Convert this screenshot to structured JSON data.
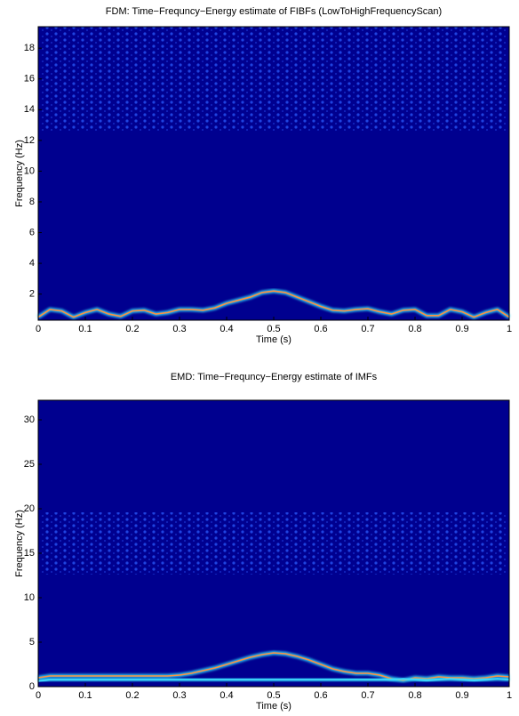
{
  "chart_data": [
    {
      "type": "line",
      "title": "FDM: Time−Frequncy−Energy estimate of FIBFs (LowToHighFrequencyScan)",
      "x_label": "Time (s)",
      "y_label": "Frequency (Hz)",
      "xlim": [
        0,
        1
      ],
      "ylim": [
        0.3,
        19.4
      ],
      "xticks": [
        0,
        0.1,
        0.2,
        0.3,
        0.4,
        0.5,
        0.6,
        0.7,
        0.8,
        0.9,
        1
      ],
      "yticks": [
        2,
        4,
        6,
        8,
        10,
        12,
        14,
        16,
        18
      ],
      "background": "#00008f",
      "x": [
        0,
        0.025,
        0.05,
        0.075,
        0.1,
        0.125,
        0.15,
        0.175,
        0.2,
        0.225,
        0.25,
        0.275,
        0.3,
        0.325,
        0.35,
        0.375,
        0.4,
        0.425,
        0.45,
        0.475,
        0.5,
        0.525,
        0.55,
        0.575,
        0.6,
        0.625,
        0.65,
        0.675,
        0.7,
        0.725,
        0.75,
        0.775,
        0.8,
        0.825,
        0.85,
        0.875,
        0.9,
        0.925,
        0.95,
        0.975,
        1
      ],
      "series": [
        {
          "color": "#ff9040",
          "values": [
            0.5,
            1.0,
            0.9,
            0.5,
            0.8,
            1.0,
            0.7,
            0.55,
            0.9,
            0.95,
            0.7,
            0.8,
            1.0,
            1.0,
            0.95,
            1.1,
            1.4,
            1.6,
            1.8,
            2.1,
            2.2,
            2.1,
            1.8,
            1.5,
            1.2,
            0.95,
            0.9,
            1.0,
            1.05,
            0.85,
            0.7,
            0.95,
            1.0,
            0.6,
            0.6,
            1.0,
            0.85,
            0.5,
            0.8,
            1.0,
            0.5
          ]
        }
      ]
    },
    {
      "type": "line",
      "title": "EMD: Time−Frequncy−Energy estimate of IMFs",
      "x_label": "Time (s)",
      "y_label": "Frequency (Hz)",
      "xlim": [
        0,
        1
      ],
      "ylim": [
        0,
        32.2
      ],
      "xticks": [
        0,
        0.1,
        0.2,
        0.3,
        0.4,
        0.5,
        0.6,
        0.7,
        0.8,
        0.9,
        1
      ],
      "yticks": [
        0,
        5,
        10,
        15,
        20,
        25,
        30
      ],
      "background": "#00008f",
      "x": [
        0,
        0.025,
        0.05,
        0.075,
        0.1,
        0.125,
        0.15,
        0.175,
        0.2,
        0.225,
        0.25,
        0.275,
        0.3,
        0.325,
        0.35,
        0.375,
        0.4,
        0.425,
        0.45,
        0.475,
        0.5,
        0.525,
        0.55,
        0.575,
        0.6,
        0.625,
        0.65,
        0.675,
        0.7,
        0.725,
        0.75,
        0.775,
        0.8,
        0.825,
        0.85,
        0.875,
        0.9,
        0.925,
        0.95,
        0.975,
        1
      ],
      "series": [
        {
          "color": "#ff9040",
          "values": [
            1.0,
            1.2,
            1.2,
            1.2,
            1.2,
            1.2,
            1.2,
            1.2,
            1.2,
            1.2,
            1.2,
            1.2,
            1.3,
            1.5,
            1.8,
            2.1,
            2.5,
            2.9,
            3.3,
            3.6,
            3.8,
            3.7,
            3.4,
            3.0,
            2.5,
            2.0,
            1.7,
            1.5,
            1.5,
            1.3,
            0.9,
            0.7,
            1.0,
            0.9,
            1.1,
            1.0,
            1.0,
            0.9,
            1.0,
            1.2,
            1.1
          ]
        },
        {
          "color": "#40e0ff",
          "values": [
            0.6,
            0.8,
            0.8,
            0.8,
            0.8,
            0.8,
            0.8,
            0.8,
            0.8,
            0.8,
            0.8,
            0.8,
            0.8,
            0.8,
            0.8,
            0.8,
            0.8,
            0.8,
            0.8,
            0.8,
            0.8,
            0.8,
            0.8,
            0.8,
            0.8,
            0.8,
            0.8,
            0.8,
            0.8,
            0.8,
            0.8,
            0.9,
            0.8,
            0.7,
            0.8,
            0.9,
            0.8,
            0.7,
            0.8,
            0.9,
            0.8
          ]
        }
      ]
    }
  ]
}
